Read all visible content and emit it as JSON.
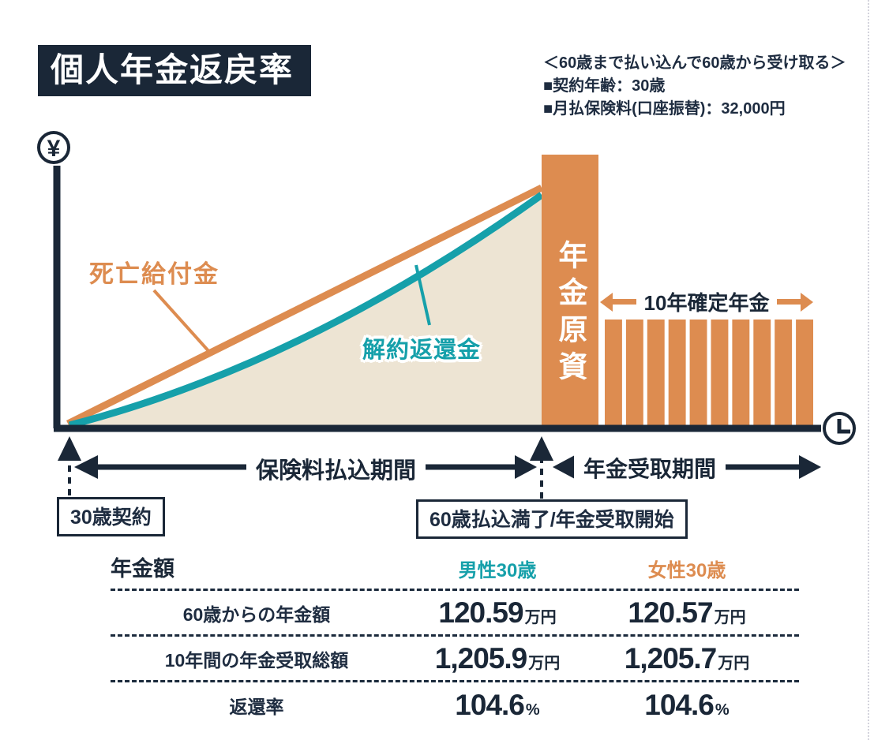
{
  "page": {
    "title": "個人年金返戻率",
    "conditions": [
      "＜60歳まで払い込んで60歳から受け取る＞",
      "■契約年齢：30歳",
      "■月払保険料(口座振替)：32,000円"
    ]
  },
  "colors": {
    "navy": "#1A2737",
    "orange": "#DD8C50",
    "teal": "#16A0AA",
    "beige": "#EDE4D3"
  },
  "icons": {
    "yen": "¥"
  },
  "chart_data": {
    "type": "area",
    "title": "個人年金返戻率",
    "y_axis": {
      "icon": "yen-circle",
      "label": ""
    },
    "x_axis": {
      "icon": "clock-circle",
      "label": ""
    },
    "series": [
      {
        "name": "死亡給付金",
        "color": "#DD8C50",
        "shape": "straight line rising from contract point to age 60"
      },
      {
        "name": "解約返還金",
        "color": "#16A0AA",
        "shape": "concave curve rising below 死亡給付金",
        "area_fill": "#EDE4D3"
      }
    ],
    "annuity_fund": {
      "label": "年金原資",
      "color": "#DD8C50"
    },
    "payout": {
      "label": "10年確定年金",
      "count": 10,
      "color": "#DD8C50"
    },
    "timeline": {
      "payment_period": "保険料払込期間",
      "receiving_period": "年金受取期間",
      "start_label": "30歳契約",
      "maturity_label": "60歳払込満了/年金受取開始"
    }
  },
  "table": {
    "header": {
      "col0": "年金額",
      "col1": "男性30歳",
      "col2": "女性30歳"
    },
    "rows": [
      {
        "label": "60歳からの年金額",
        "male_value": "120.59",
        "male_unit": "万円",
        "female_value": "120.57",
        "female_unit": "万円"
      },
      {
        "label": "10年間の年金受取総額",
        "male_value": "1,205.9",
        "male_unit": "万円",
        "female_value": "1,205.7",
        "female_unit": "万円"
      },
      {
        "label": "返還率",
        "male_value": "104.6",
        "male_unit": "%",
        "female_value": "104.6",
        "female_unit": "%"
      }
    ]
  }
}
